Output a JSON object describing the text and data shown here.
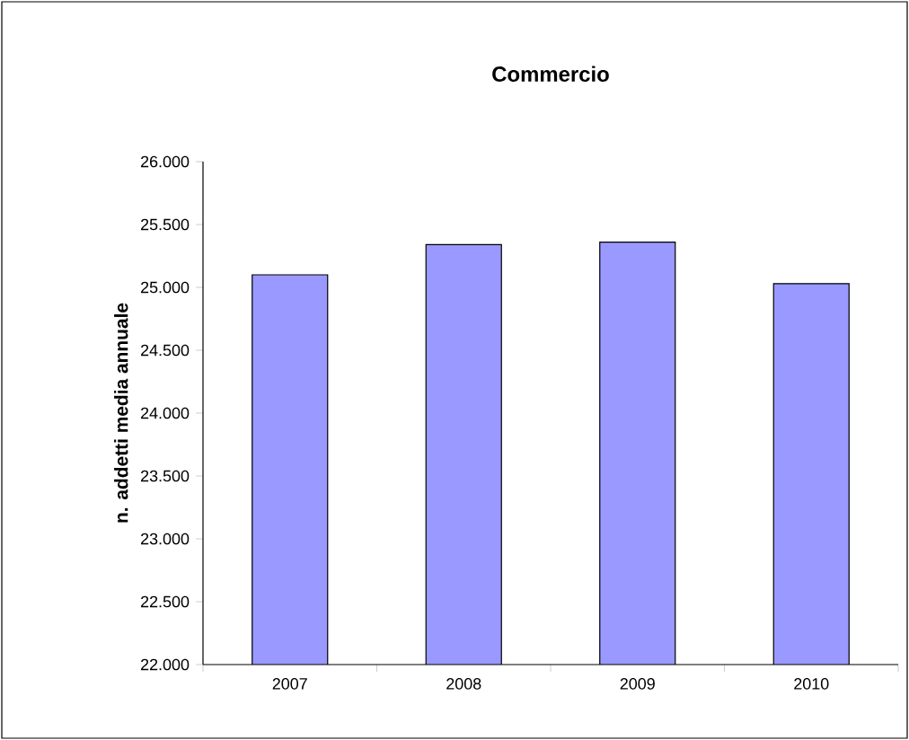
{
  "chart_data": {
    "type": "bar",
    "title": "Commercio",
    "ylabel": "n. addetti media annuale",
    "categories": [
      "2007",
      "2008",
      "2009",
      "2010"
    ],
    "values": [
      25100,
      25340,
      25360,
      25030
    ],
    "color": "#9999ff",
    "ylim": [
      22000,
      26000
    ],
    "yticks": [
      {
        "value": 22000,
        "label": "22.000"
      },
      {
        "value": 22500,
        "label": "22.500"
      },
      {
        "value": 23000,
        "label": "23.000"
      },
      {
        "value": 23500,
        "label": "23.500"
      },
      {
        "value": 24000,
        "label": "24.000"
      },
      {
        "value": 24500,
        "label": "24.500"
      },
      {
        "value": 25000,
        "label": "25.000"
      },
      {
        "value": 25500,
        "label": "25.500"
      },
      {
        "value": 26000,
        "label": "26.000"
      }
    ],
    "grid": false
  }
}
